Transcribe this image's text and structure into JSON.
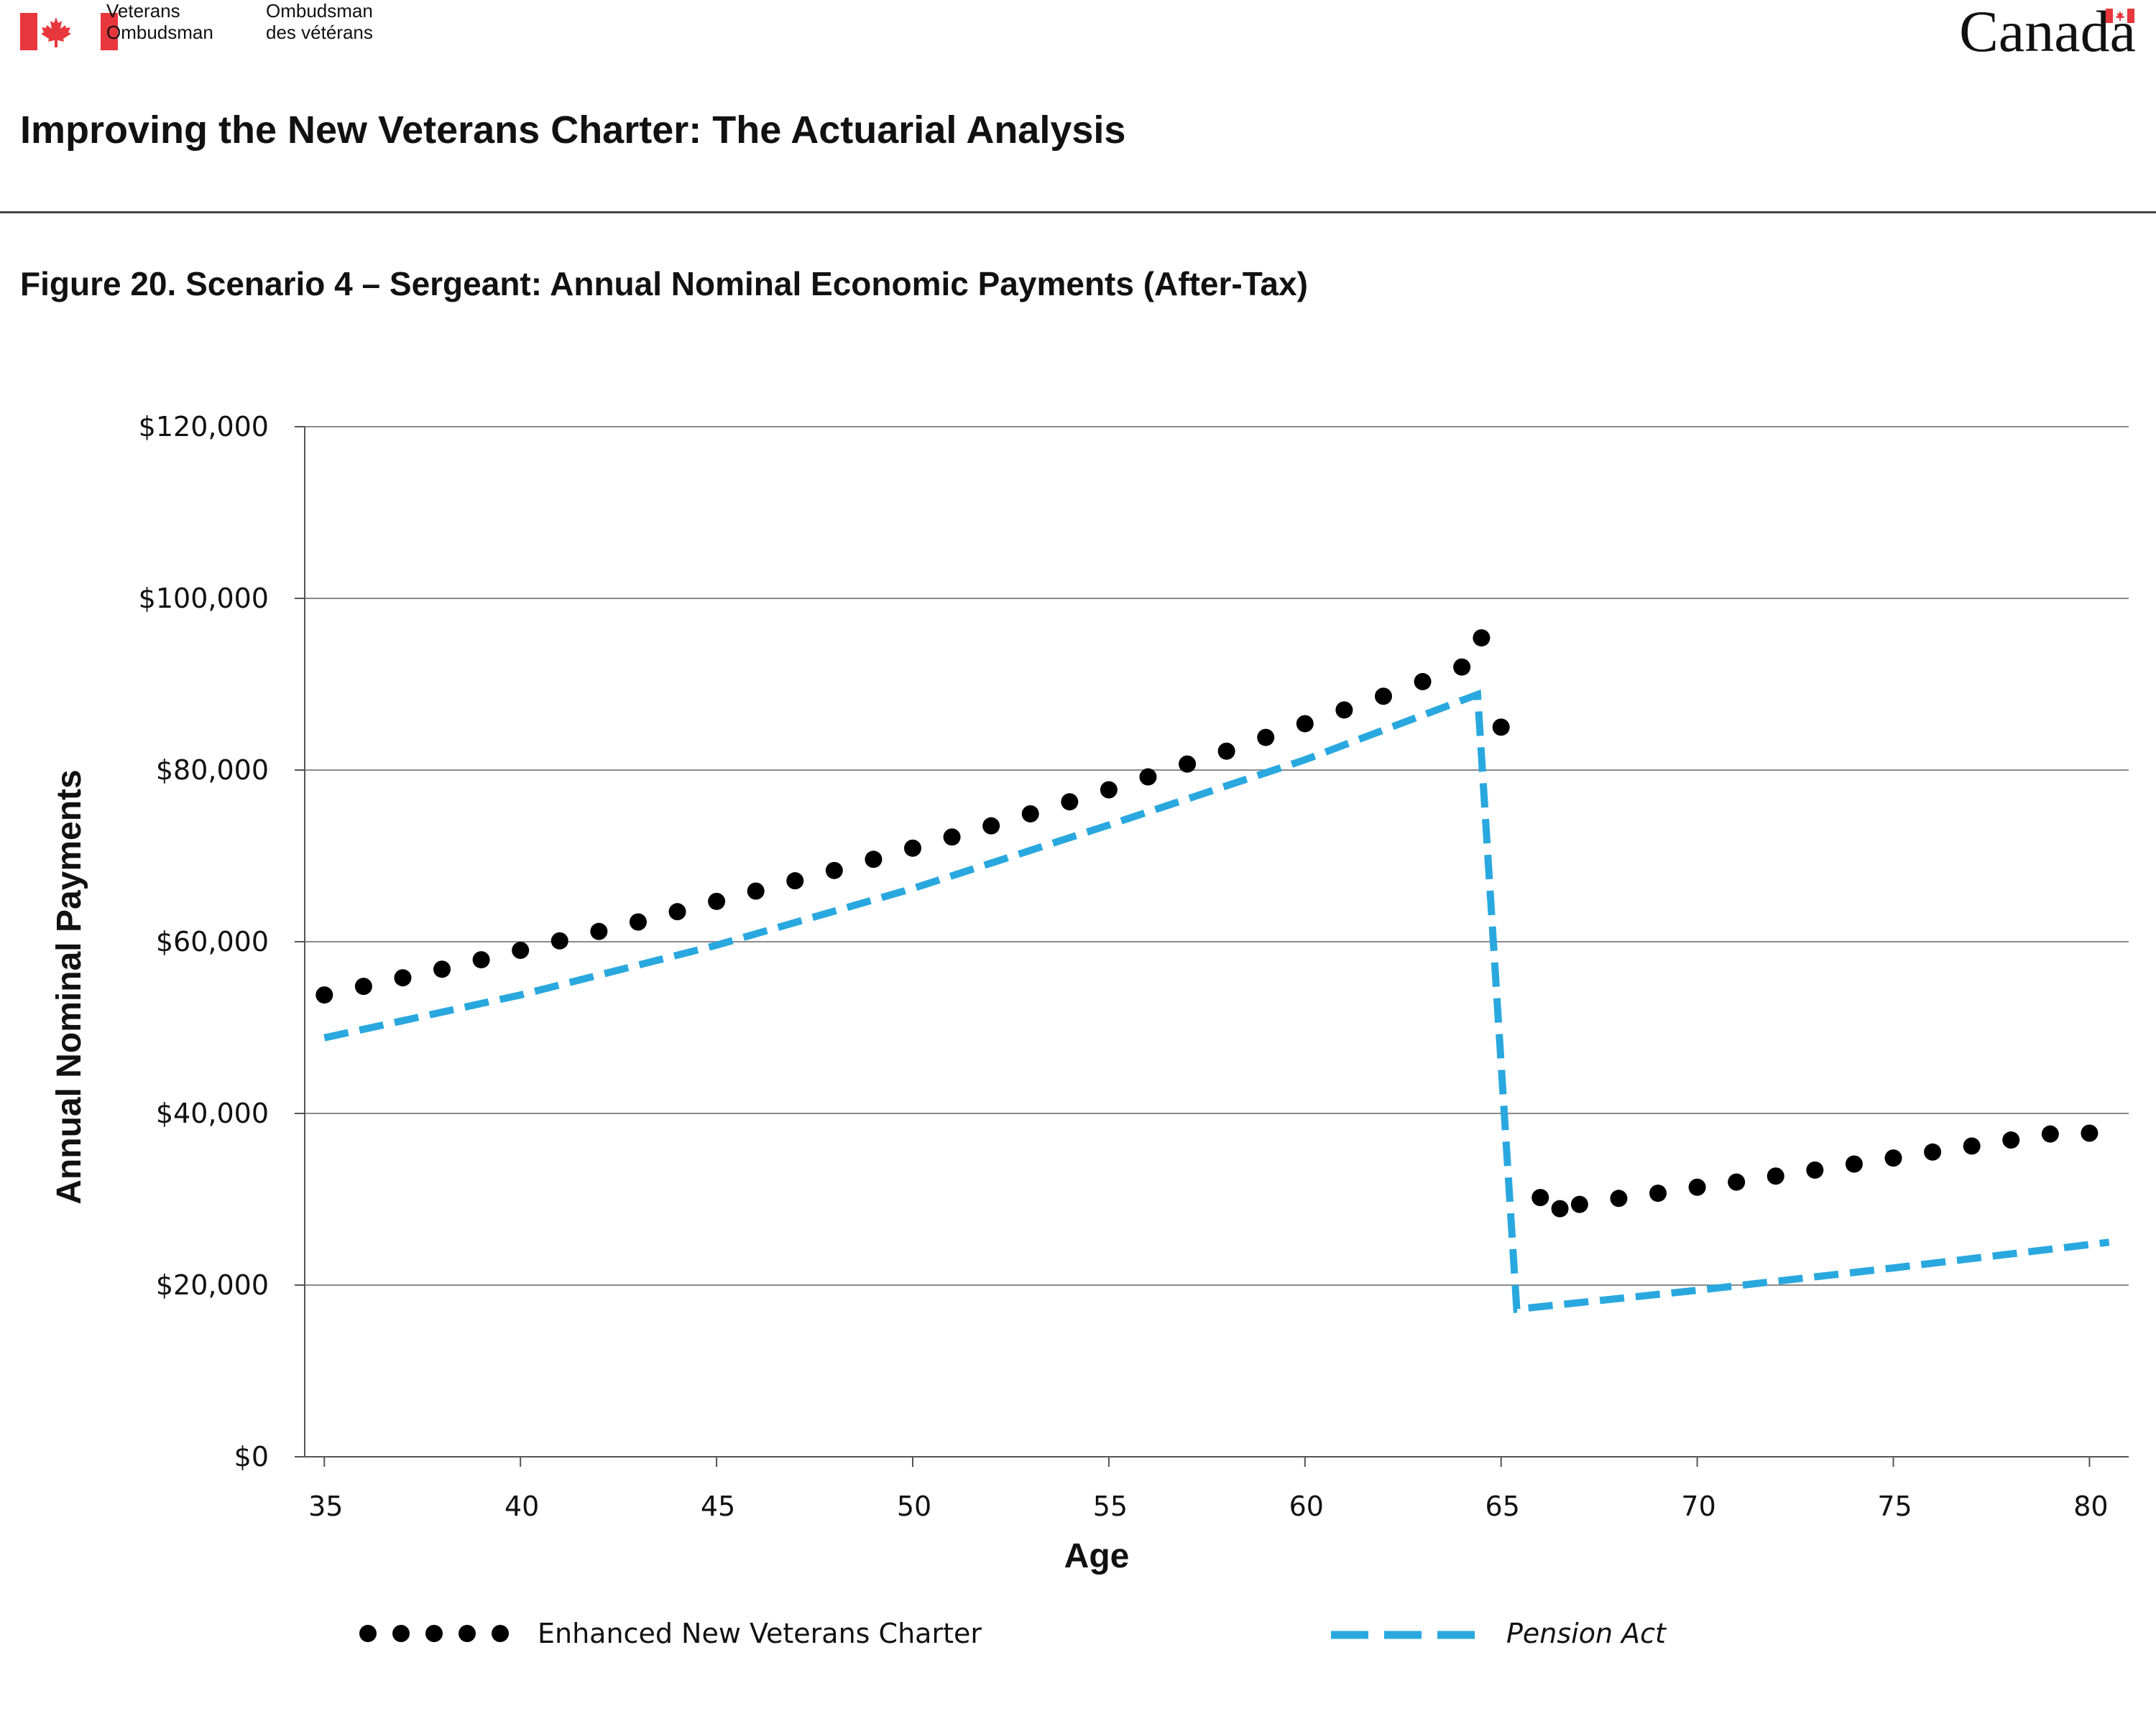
{
  "header": {
    "org_name_en": "Veterans\nOmbudsman",
    "org_name_fr": "Ombudsman\ndes vétérans",
    "wordmark": "Canada",
    "flag_icon": "canada-flag-icon",
    "flag_color": "#e8363d"
  },
  "document_title": "Improving the New Veterans Charter: The Actuarial Analysis",
  "figure_title": "Figure 20. Scenario 4 – Sergeant: Annual Nominal Economic Payments (After-Tax)",
  "chart_data": {
    "type": "line",
    "title": "",
    "xlabel": "Age",
    "ylabel": "Annual Nominal Payments",
    "xlim": [
      34.5,
      81
    ],
    "ylim": [
      0,
      120000
    ],
    "x_ticks": [
      35,
      40,
      45,
      50,
      55,
      60,
      65,
      70,
      75,
      80
    ],
    "x_tick_labels": [
      "35",
      "40",
      "45",
      "50",
      "55",
      "60",
      "65",
      "70",
      "75",
      "80"
    ],
    "y_ticks": [
      0,
      20000,
      40000,
      60000,
      80000,
      100000,
      120000
    ],
    "y_tick_labels": [
      "$0",
      "$20,000",
      "$40,000",
      "$60,000",
      "$80,000",
      "$100,000",
      "$120,000"
    ],
    "grid": "horizontal",
    "legend_position": "bottom",
    "series": [
      {
        "name": "Enhanced New Veterans Charter",
        "style": "dotted",
        "color": "#000000",
        "points": [
          [
            35,
            53800
          ],
          [
            36,
            54800
          ],
          [
            37,
            55800
          ],
          [
            38,
            56800
          ],
          [
            39,
            57900
          ],
          [
            40,
            59000
          ],
          [
            41,
            60100
          ],
          [
            42,
            61200
          ],
          [
            43,
            62300
          ],
          [
            44,
            63500
          ],
          [
            45,
            64700
          ],
          [
            46,
            65900
          ],
          [
            47,
            67100
          ],
          [
            48,
            68300
          ],
          [
            49,
            69600
          ],
          [
            50,
            70900
          ],
          [
            51,
            72200
          ],
          [
            52,
            73500
          ],
          [
            53,
            74900
          ],
          [
            54,
            76300
          ],
          [
            55,
            77700
          ],
          [
            56,
            79200
          ],
          [
            57,
            80700
          ],
          [
            58,
            82200
          ],
          [
            59,
            83800
          ],
          [
            60,
            85400
          ],
          [
            61,
            87000
          ],
          [
            62,
            88600
          ],
          [
            63,
            90300
          ],
          [
            64,
            92000
          ],
          [
            64.5,
            95400
          ],
          [
            65,
            85000
          ],
          [
            66,
            30200
          ],
          [
            66.5,
            28900
          ],
          [
            67,
            29400
          ],
          [
            68,
            30100
          ],
          [
            69,
            30700
          ],
          [
            70,
            31400
          ],
          [
            71,
            32000
          ],
          [
            72,
            32700
          ],
          [
            73,
            33400
          ],
          [
            74,
            34100
          ],
          [
            75,
            34800
          ],
          [
            76,
            35500
          ],
          [
            77,
            36200
          ],
          [
            78,
            36900
          ],
          [
            79,
            37600
          ],
          [
            80,
            37700
          ]
        ]
      },
      {
        "name": "Pension Act",
        "style": "dashed",
        "color": "#29a8df",
        "points": [
          [
            35,
            48800
          ],
          [
            40,
            53800
          ],
          [
            45,
            59600
          ],
          [
            50,
            66200
          ],
          [
            55,
            73600
          ],
          [
            60,
            81200
          ],
          [
            64.4,
            88800
          ],
          [
            65.4,
            17200
          ],
          [
            70,
            19400
          ],
          [
            75,
            22000
          ],
          [
            80.5,
            25000
          ]
        ]
      }
    ]
  }
}
